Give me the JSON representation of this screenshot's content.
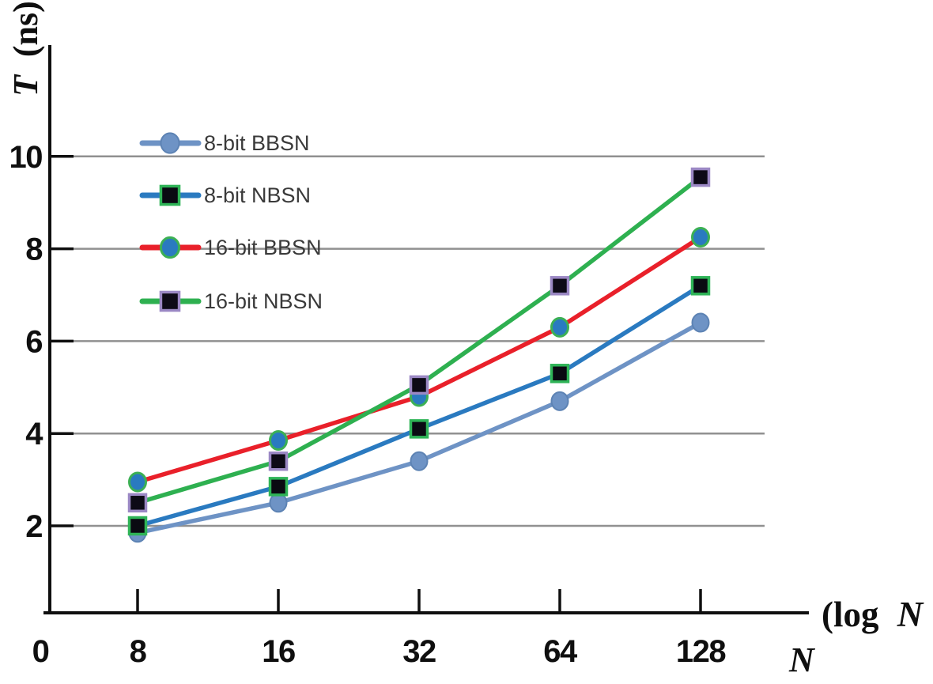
{
  "figure": {
    "y_axis_title_symbol": "T",
    "y_axis_title_unit": "(ns)",
    "x_axis_title_prefix": "(log",
    "x_axis_title_variable": "N",
    "x_axis_title_suffix": ")",
    "x_axis_subtitle": "N"
  },
  "chart_data": {
    "type": "line",
    "x_scale": "log2",
    "categories": [
      8,
      16,
      32,
      64,
      128
    ],
    "x_tick_labels": [
      "8",
      "16",
      "32",
      "64",
      "128"
    ],
    "origin_label": "0",
    "y_ticks": [
      2,
      4,
      6,
      8,
      10
    ],
    "ylim": [
      0,
      11.5
    ],
    "xlabel": "(log N)",
    "xlabel_secondary": "N",
    "ylabel": "T (ns)",
    "grid": "horizontal",
    "legend_position": "upper-left-inside",
    "series": [
      {
        "name": "8-bit BBSN",
        "values": [
          1.85,
          2.5,
          3.4,
          4.7,
          6.4
        ],
        "line_color": "#6e93c5",
        "marker": "circle",
        "marker_fill": "#6e93c5",
        "marker_outline": "#5d83b4",
        "marker_outline_width": 2
      },
      {
        "name": "8-bit NBSN",
        "values": [
          2.0,
          2.85,
          4.1,
          5.3,
          7.2
        ],
        "line_color": "#2a7ac0",
        "marker": "square",
        "marker_fill": "#0a0a12",
        "marker_outline": "#2fb457",
        "marker_outline_width": 3.5
      },
      {
        "name": "16-bit BBSN",
        "values": [
          2.95,
          3.85,
          4.8,
          6.3,
          8.25
        ],
        "line_color": "#e9202a",
        "marker": "circle",
        "marker_fill": "#2a7ac0",
        "marker_outline": "#3cb054",
        "marker_outline_width": 3
      },
      {
        "name": "16-bit NBSN",
        "values": [
          2.5,
          3.4,
          5.05,
          7.2,
          9.55
        ],
        "line_color": "#2eb050",
        "marker": "square",
        "marker_fill": "#0d0a16",
        "marker_outline": "#9b88c4",
        "marker_outline_width": 3.5
      }
    ],
    "colors": {
      "grid": "#909090",
      "axis": "#0f0f0f",
      "tick_text": "#0f0f0f",
      "legend_text": "#3a3a3a",
      "background": "#ffffff"
    }
  }
}
